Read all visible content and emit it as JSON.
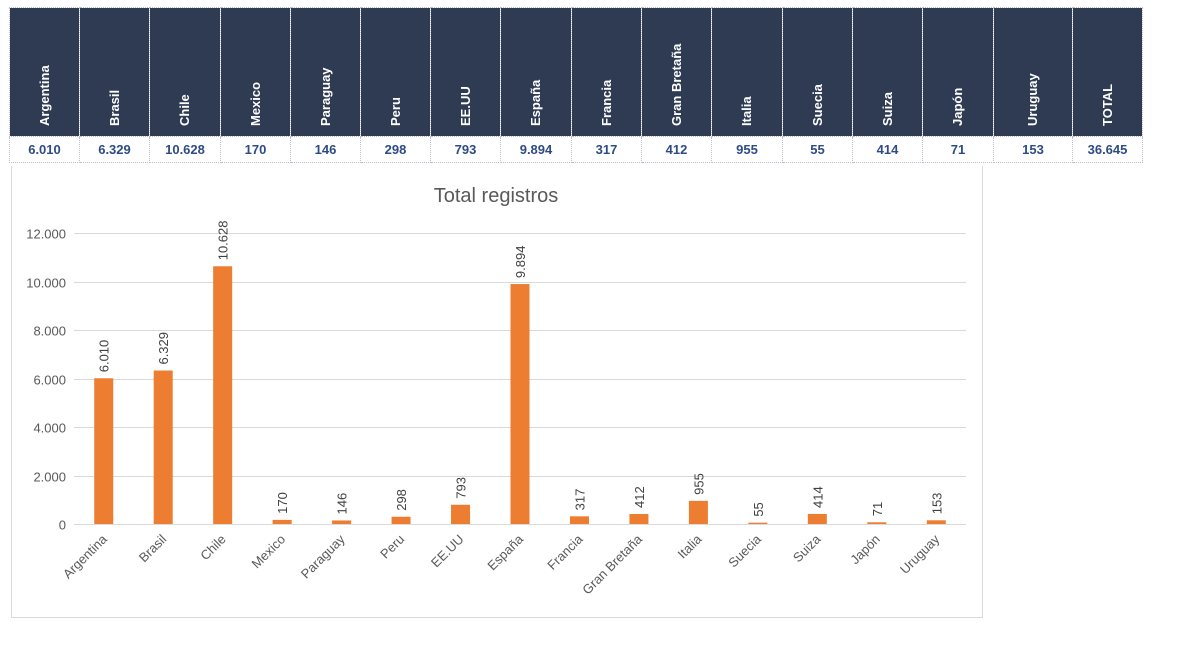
{
  "table": {
    "headers": [
      "Argentina",
      "Brasil",
      "Chile",
      "Mexico",
      "Paraguay",
      "Peru",
      "EE.UU",
      "España",
      "Francia",
      "Gran Bretaña",
      "Italia",
      "Suecia",
      "Suiza",
      "Japón",
      "Uruguay",
      "TOTAL"
    ],
    "values": [
      "6.010",
      "6.329",
      "10.628",
      "170",
      "146",
      "298",
      "793",
      "9.894",
      "317",
      "412",
      "955",
      "55",
      "414",
      "71",
      "153",
      "36.645"
    ]
  },
  "chart_data": {
    "type": "bar",
    "title": "Total registros",
    "categories": [
      "Argentina",
      "Brasil",
      "Chile",
      "Mexico",
      "Paraguay",
      "Peru",
      "EE.UU",
      "España",
      "Francia",
      "Gran Bretaña",
      "Italia",
      "Suecia",
      "Suiza",
      "Japón",
      "Uruguay"
    ],
    "values": [
      6010,
      6329,
      10628,
      170,
      146,
      298,
      793,
      9894,
      317,
      412,
      955,
      55,
      414,
      71,
      153
    ],
    "data_labels": [
      "6.010",
      "6.329",
      "10.628",
      "170",
      "146",
      "298",
      "793",
      "9.894",
      "317",
      "412",
      "955",
      "55",
      "414",
      "71",
      "153"
    ],
    "ylim": [
      0,
      12000
    ],
    "yticks": [
      0,
      2000,
      4000,
      6000,
      8000,
      10000,
      12000
    ],
    "ytick_labels": [
      "0",
      "2.000",
      "4.000",
      "6.000",
      "8.000",
      "10.000",
      "12.000"
    ],
    "grid": true,
    "bar_color": "#ed7d31",
    "xlabel": "",
    "ylabel": ""
  },
  "colors": {
    "header_bg": "#2f3b52",
    "value_text": "#2e4b86",
    "bar": "#ed7d31",
    "grid": "#d9d9d9"
  }
}
